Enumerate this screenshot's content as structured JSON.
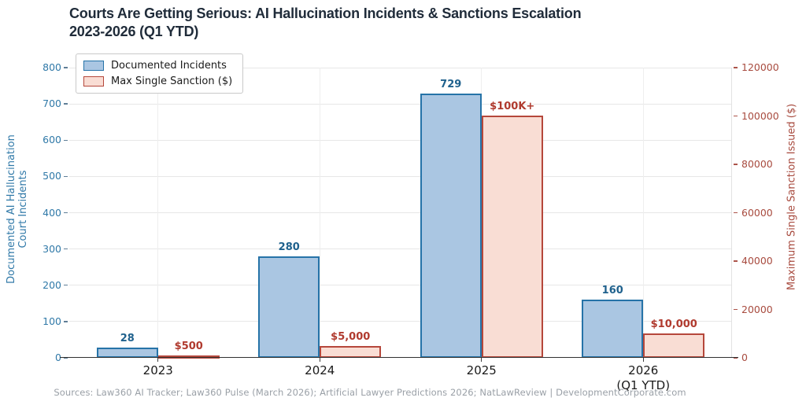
{
  "title": {
    "line1": "Courts Are Getting Serious: AI Hallucination Incidents & Sanctions Escalation",
    "line2": "2023-2026 (Q1 YTD)"
  },
  "footer": {
    "text": "Sources: Law360 AI Tracker; Law360 Pulse (March 2026); Artificial Lawyer Predictions 2026; NatLawReview  |  DevelopmentCorporate.com"
  },
  "chart_data": {
    "type": "bar",
    "title": "Courts Are Getting Serious: AI Hallucination Incidents & Sanctions Escalation 2023-2026 (Q1 YTD)",
    "categories": [
      "2023",
      "2024",
      "2025",
      "2026 (Q1 YTD)"
    ],
    "category_labels": [
      {
        "label": "2023",
        "sub": ""
      },
      {
        "label": "2024",
        "sub": ""
      },
      {
        "label": "2025",
        "sub": ""
      },
      {
        "label": "2026",
        "sub": "(Q1 YTD)"
      }
    ],
    "series": [
      {
        "name": "Documented Incidents",
        "axis": "left",
        "values": [
          28,
          280,
          729,
          160
        ],
        "value_labels": [
          "28",
          "280",
          "729",
          "160"
        ],
        "fill": "#aac6e2",
        "stroke": "#2673a8",
        "label_color": "#1f618d"
      },
      {
        "name": "Max Single Sanction ($)",
        "axis": "right",
        "values": [
          500,
          5000,
          100000,
          10000
        ],
        "value_labels": [
          "$500",
          "$5,000",
          "$100K+",
          "$10,000"
        ],
        "fill": "#f9ddd4",
        "stroke": "#b5473b",
        "label_color": "#b03a2e"
      }
    ],
    "left_axis": {
      "label_lines": [
        "Documented AI Hallucination",
        "Court Incidents"
      ],
      "min": 0,
      "max": 800,
      "step": 100,
      "color": "#3079a8"
    },
    "right_axis": {
      "label": "Maximum Single Sanction Issued ($)",
      "min": 0,
      "max": 120000,
      "step": 20000,
      "color": "#a84b3f"
    },
    "grid": true,
    "legend_position": "upper left"
  }
}
